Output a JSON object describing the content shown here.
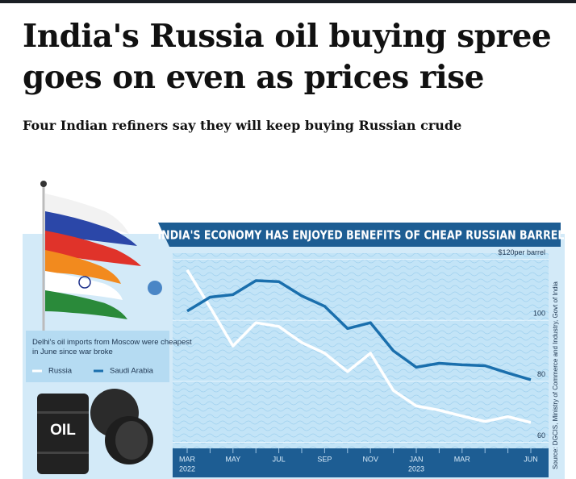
{
  "header": {
    "title": "India's Russia oil buying spree goes on even as prices rise",
    "subtitle": "Four Indian refiners say they will keep buying Russian crude"
  },
  "chart_data": {
    "type": "line",
    "title": "INDIA'S ECONOMY HAS ENJOYED BENEFITS OF CHEAP RUSSIAN BARRELS",
    "annotation": "Delhi's oil imports from Moscow were cheapest in June since war broke",
    "source": "Source: DGCIS, Ministry of Commerce and Industry, Govt of India",
    "image_label": "OIL",
    "categories": [
      "MAR",
      null,
      "MAY",
      null,
      "JUL",
      null,
      "SEP",
      null,
      "NOV",
      null,
      "JAN",
      null,
      "MAR",
      null,
      null,
      "JUN"
    ],
    "years": [
      "2022",
      null,
      null,
      null,
      null,
      null,
      null,
      null,
      null,
      null,
      "2023",
      null,
      null,
      null,
      null,
      null
    ],
    "series": [
      {
        "name": "Russia",
        "color": "#ffffff",
        "values": [
          116.5,
          104.3,
          91.6,
          99.2,
          98,
          92.7,
          89.2,
          83.2,
          89.2,
          77,
          71.9,
          70.5,
          68.6,
          66.8,
          68.4,
          66.5
        ]
      },
      {
        "name": "Saudi Arabia",
        "color": "#1a6fad",
        "values": [
          103,
          107.6,
          108.4,
          113,
          112.7,
          108,
          104.6,
          97.3,
          99.2,
          90,
          84.6,
          85.9,
          85.4,
          85.1,
          82.7,
          80.5
        ]
      }
    ],
    "ylim": [
      58,
      122
    ],
    "yticks": [
      60,
      80,
      100,
      {
        "value": 120,
        "label": "$120per barrel"
      }
    ],
    "grid": true
  }
}
